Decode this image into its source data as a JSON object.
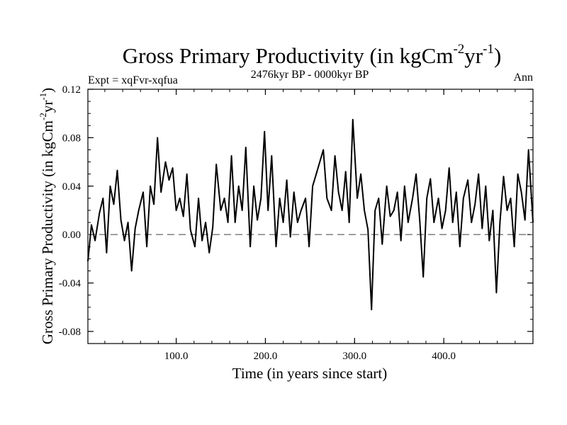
{
  "chart_data": {
    "type": "line",
    "title": {
      "main": "Gross Primary Productivity (in kgCm",
      "exp1": "-2",
      "mid": "yr",
      "exp2": "-1",
      "close": ")"
    },
    "subtitle_left": "Expt = xqFvr-xqfua",
    "subtitle_center": "2476kyr BP - 0000kyr BP",
    "subtitle_right": "Ann",
    "xlabel": "Time (in years since start)",
    "ylabel": {
      "main": "Gross Primary Productivity (in kgCm",
      "exp1": "-2",
      "mid": "yr",
      "exp2": "-1",
      "close": ")"
    },
    "xlim": [
      1,
      500
    ],
    "ylim": [
      -0.09,
      0.12
    ],
    "xticks": [
      {
        "value": 100,
        "label": "100.0"
      },
      {
        "value": 200,
        "label": "200.0"
      },
      {
        "value": 300,
        "label": "300.0"
      },
      {
        "value": 400,
        "label": "400.0"
      }
    ],
    "yticks": [
      {
        "value": 0.12,
        "label": "0.12"
      },
      {
        "value": 0.08,
        "label": "0.08"
      },
      {
        "value": 0.04,
        "label": "0.04"
      },
      {
        "value": 0.0,
        "label": "0.00"
      },
      {
        "value": -0.04,
        "label": "-0.04"
      },
      {
        "value": -0.08,
        "label": "-0.08"
      }
    ],
    "reference_line": {
      "value": 0.0,
      "style": "dashed"
    },
    "series": [
      {
        "name": "Gross Primary Productivity",
        "x": [
          1,
          5,
          9,
          14,
          18,
          22,
          26,
          30,
          34,
          38,
          42,
          46,
          50,
          54,
          58,
          63,
          67,
          71,
          75,
          79,
          83,
          88,
          92,
          96,
          100,
          104,
          108,
          112,
          116,
          121,
          125,
          129,
          133,
          137,
          141,
          145,
          150,
          154,
          158,
          162,
          166,
          170,
          174,
          178,
          183,
          187,
          191,
          195,
          199,
          203,
          207,
          212,
          216,
          220,
          224,
          228,
          232,
          236,
          240,
          245,
          249,
          253,
          257,
          261,
          265,
          269,
          274,
          278,
          282,
          286,
          290,
          294,
          298,
          303,
          307,
          311,
          315,
          319,
          323,
          327,
          331,
          336,
          340,
          344,
          348,
          352,
          356,
          360,
          365,
          369,
          373,
          377,
          381,
          385,
          389,
          394,
          398,
          402,
          406,
          410,
          414,
          418,
          422,
          427,
          431,
          435,
          439,
          443,
          447,
          451,
          455,
          459,
          463,
          467,
          471,
          475,
          479,
          483,
          487,
          491,
          495,
          500
        ],
        "y": [
          -0.022,
          0.008,
          -0.005,
          0.018,
          0.03,
          -0.015,
          0.04,
          0.025,
          0.053,
          0.012,
          -0.005,
          0.01,
          -0.03,
          0.005,
          0.02,
          0.035,
          -0.01,
          0.04,
          0.025,
          0.08,
          0.035,
          0.06,
          0.045,
          0.055,
          0.02,
          0.03,
          0.015,
          0.05,
          0.004,
          -0.01,
          0.03,
          -0.005,
          0.01,
          -0.015,
          0.006,
          0.058,
          0.02,
          0.03,
          0.01,
          0.065,
          0.01,
          0.04,
          0.02,
          0.072,
          -0.01,
          0.04,
          0.012,
          0.03,
          0.085,
          0.02,
          0.065,
          -0.01,
          0.03,
          0.01,
          0.045,
          -0.002,
          0.035,
          0.01,
          0.02,
          0.03,
          -0.01,
          0.04,
          0.05,
          0.06,
          0.07,
          0.03,
          0.02,
          0.065,
          0.035,
          0.02,
          0.052,
          0.01,
          0.095,
          0.03,
          0.05,
          0.02,
          0.004,
          -0.062,
          0.02,
          0.03,
          -0.008,
          0.04,
          0.015,
          0.02,
          0.035,
          -0.005,
          0.04,
          0.01,
          0.03,
          0.05,
          0.012,
          -0.035,
          0.03,
          0.046,
          0.01,
          0.03,
          0.005,
          0.02,
          0.055,
          0.01,
          0.035,
          -0.01,
          0.03,
          0.045,
          0.01,
          0.025,
          0.05,
          0.005,
          0.04,
          -0.005,
          0.02,
          -0.048,
          0.01,
          0.048,
          0.02,
          0.03,
          -0.01,
          0.05,
          0.035,
          0.012,
          0.07,
          0.01
        ]
      }
    ]
  }
}
